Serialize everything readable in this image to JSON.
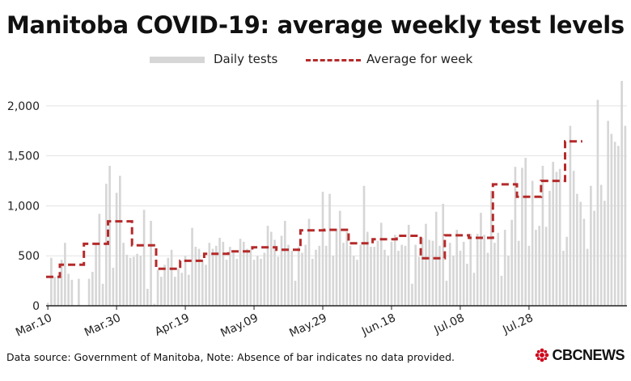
{
  "title": "Manitoba COVID-19: average weekly test levels",
  "legend": {
    "bars_label": "Daily tests",
    "line_label": "Average for week"
  },
  "footer": {
    "source": "Data source: Government of Manitoba,  Note: Absence of bar indicates no data provided."
  },
  "logo": {
    "text": "CBCNEWS",
    "icon": "cbc-gem-icon"
  },
  "colors": {
    "bar": "#d6d6d6",
    "average_line": "#b52a2a",
    "grid": "#e3e3e3",
    "axis": "#222222"
  },
  "chart_data": {
    "type": "bar",
    "title": "Manitoba COVID-19: average weekly test levels",
    "xlabel": "",
    "ylabel": "",
    "ylim": [
      0,
      2250
    ],
    "y_ticks": [
      "0",
      "500",
      "1,000",
      "1,500",
      "2,000"
    ],
    "y_tick_values": [
      0,
      500,
      1000,
      1500,
      2000
    ],
    "x_tick_labels": [
      "Mar.10",
      "Mar.30",
      "Apr.19",
      "May.09",
      "May.29",
      "Jun.18",
      "Jul.08",
      "Jul.28"
    ],
    "x_tick_day_index": [
      0,
      20,
      40,
      60,
      80,
      100,
      120,
      140
    ],
    "grid": true,
    "legend_position": "top",
    "start_date": "Mar.10",
    "series": [
      {
        "name": "Daily tests",
        "type": "bar",
        "values": [
          30,
          480,
          290,
          280,
          460,
          630,
          320,
          260,
          0,
          270,
          0,
          0,
          270,
          340,
          630,
          920,
          220,
          1220,
          1400,
          380,
          1130,
          1300,
          630,
          510,
          480,
          490,
          520,
          500,
          960,
          170,
          850,
          20,
          360,
          290,
          410,
          480,
          560,
          290,
          370,
          330,
          500,
          310,
          780,
          590,
          570,
          450,
          410,
          630,
          570,
          600,
          680,
          640,
          460,
          590,
          530,
          470,
          670,
          640,
          570,
          560,
          460,
          500,
          470,
          530,
          800,
          740,
          660,
          490,
          700,
          850,
          610,
          550,
          250,
          590,
          530,
          610,
          870,
          470,
          560,
          600,
          1140,
          600,
          1120,
          500,
          770,
          950,
          630,
          740,
          600,
          500,
          460,
          610,
          1200,
          740,
          590,
          590,
          650,
          830,
          560,
          500,
          640,
          710,
          550,
          610,
          600,
          810,
          220,
          610,
          490,
          680,
          820,
          660,
          650,
          940,
          600,
          1020,
          250,
          630,
          500,
          760,
          550,
          640,
          420,
          720,
          330,
          720,
          930,
          710,
          530,
          1150,
          630,
          730,
          300,
          760,
          500,
          860,
          1390,
          650,
          1380,
          1480,
          600,
          1250,
          760,
          800,
          1400,
          790,
          1150,
          1440,
          1340,
          1370,
          550,
          690,
          1800,
          1350,
          1120,
          1040,
          870,
          570,
          1200,
          950,
          2060,
          1210,
          1050,
          1850,
          1720,
          1640,
          1600,
          2250,
          1800
        ],
        "missing_days": [
          8,
          10,
          11
        ]
      },
      {
        "name": "Average for week",
        "type": "step",
        "weeks": [
          {
            "start": 0,
            "end": 4,
            "value": 290
          },
          {
            "start": 4,
            "end": 11,
            "value": 410
          },
          {
            "start": 11,
            "end": 18,
            "value": 620
          },
          {
            "start": 18,
            "end": 25,
            "value": 845
          },
          {
            "start": 25,
            "end": 32,
            "value": 605
          },
          {
            "start": 32,
            "end": 39,
            "value": 370
          },
          {
            "start": 39,
            "end": 46,
            "value": 450
          },
          {
            "start": 46,
            "end": 53,
            "value": 520
          },
          {
            "start": 53,
            "end": 60,
            "value": 545
          },
          {
            "start": 60,
            "end": 67,
            "value": 585
          },
          {
            "start": 67,
            "end": 74,
            "value": 560
          },
          {
            "start": 74,
            "end": 81,
            "value": 755
          },
          {
            "start": 81,
            "end": 88,
            "value": 760
          },
          {
            "start": 88,
            "end": 95,
            "value": 625
          },
          {
            "start": 95,
            "end": 102,
            "value": 665
          },
          {
            "start": 102,
            "end": 109,
            "value": 700
          },
          {
            "start": 109,
            "end": 116,
            "value": 475
          },
          {
            "start": 116,
            "end": 123,
            "value": 705
          },
          {
            "start": 123,
            "end": 130,
            "value": 680
          },
          {
            "start": 130,
            "end": 137,
            "value": 1215
          },
          {
            "start": 137,
            "end": 144,
            "value": 1090
          },
          {
            "start": 144,
            "end": 151,
            "value": 1250
          },
          {
            "start": 151,
            "end": 156,
            "value": 1645
          }
        ]
      }
    ]
  }
}
